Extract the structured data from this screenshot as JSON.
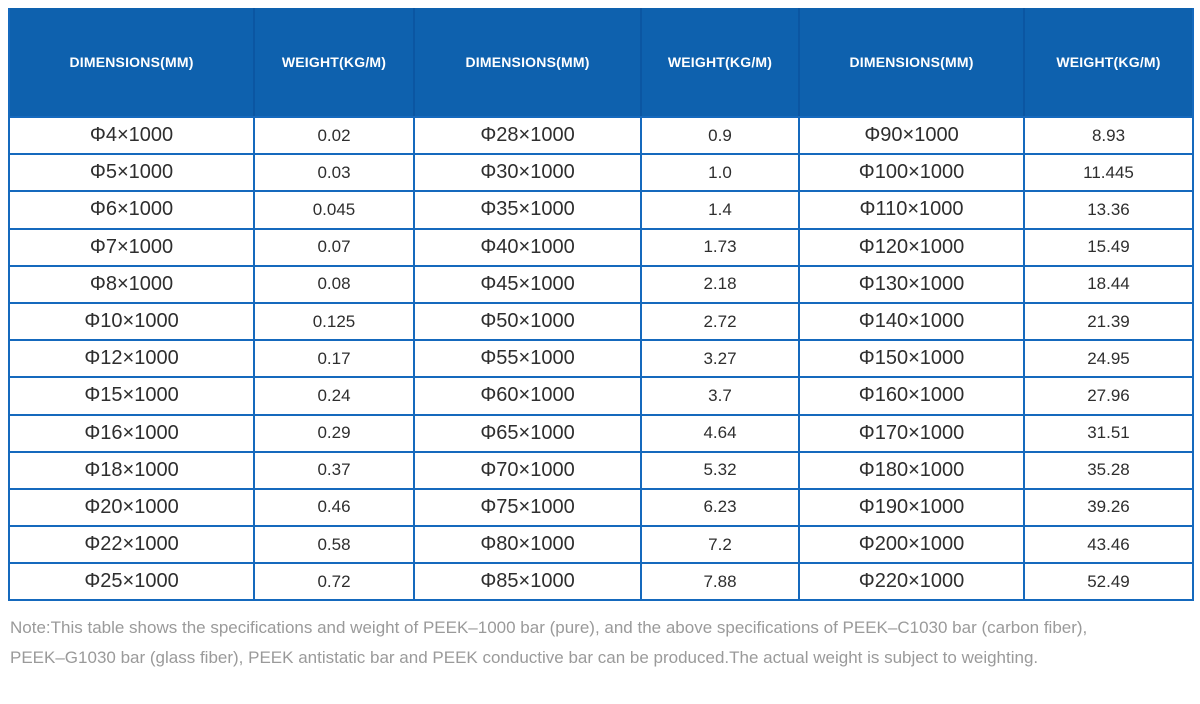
{
  "spec_table": {
    "header_bg": "#0e61ae",
    "border_color": "#1569bd",
    "header_text_color": "#ffffff",
    "columns": [
      "DIMENSIONS(MM)",
      "WEIGHT(KG/M)",
      "DIMENSIONS(MM)",
      "WEIGHT(KG/M)",
      "DIMENSIONS(MM)",
      "WEIGHT(KG/M)"
    ],
    "rows": [
      [
        "Φ4×1000",
        "0.02",
        "Φ28×1000",
        "0.9",
        "Φ90×1000",
        "8.93"
      ],
      [
        "Φ5×1000",
        "0.03",
        "Φ30×1000",
        "1.0",
        "Φ100×1000",
        "11.445"
      ],
      [
        "Φ6×1000",
        "0.045",
        "Φ35×1000",
        "1.4",
        "Φ110×1000",
        "13.36"
      ],
      [
        "Φ7×1000",
        "0.07",
        "Φ40×1000",
        "1.73",
        "Φ120×1000",
        "15.49"
      ],
      [
        "Φ8×1000",
        "0.08",
        "Φ45×1000",
        "2.18",
        "Φ130×1000",
        "18.44"
      ],
      [
        "Φ10×1000",
        "0.125",
        "Φ50×1000",
        "2.72",
        "Φ140×1000",
        "21.39"
      ],
      [
        "Φ12×1000",
        "0.17",
        "Φ55×1000",
        "3.27",
        "Φ150×1000",
        "24.95"
      ],
      [
        "Φ15×1000",
        "0.24",
        "Φ60×1000",
        "3.7",
        "Φ160×1000",
        "27.96"
      ],
      [
        "Φ16×1000",
        "0.29",
        "Φ65×1000",
        "4.64",
        "Φ170×1000",
        "31.51"
      ],
      [
        "Φ18×1000",
        "0.37",
        "Φ70×1000",
        "5.32",
        "Φ180×1000",
        "35.28"
      ],
      [
        "Φ20×1000",
        "0.46",
        "Φ75×1000",
        "6.23",
        "Φ190×1000",
        "39.26"
      ],
      [
        "Φ22×1000",
        "0.58",
        "Φ80×1000",
        "7.2",
        "Φ200×1000",
        "43.46"
      ],
      [
        "Φ25×1000",
        "0.72",
        "Φ85×1000",
        "7.88",
        "Φ220×1000",
        "52.49"
      ]
    ]
  },
  "note": {
    "text_color": "#9a9a9a",
    "lines": [
      "Note:This table shows the specifications and weight of PEEK–1000 bar (pure), and the above specifications of PEEK–C1030 bar (carbon fiber),",
      "PEEK–G1030 bar (glass fiber), PEEK antistatic bar and PEEK conductive bar can be produced.The actual weight is subject to weighting."
    ]
  }
}
